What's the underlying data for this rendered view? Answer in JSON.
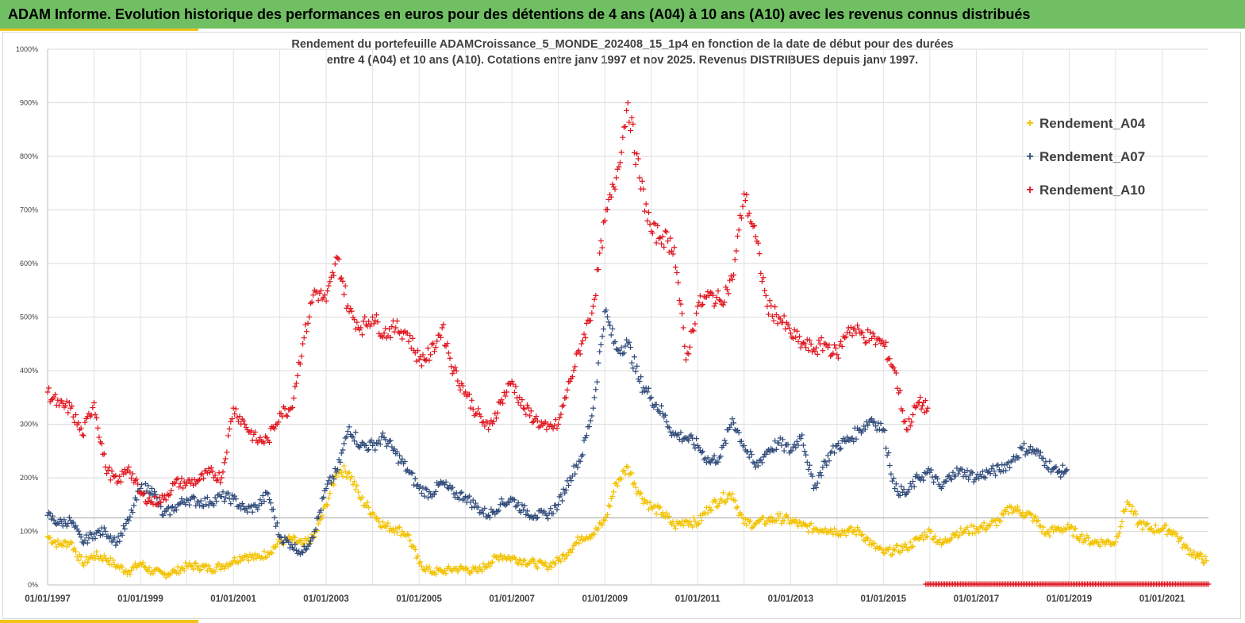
{
  "header": {
    "title": "ADAM Informe. Evolution historique des performances en euros pour des détentions de 4 ans (A04) à 10 ans (A10) avec les revenus connus distribués"
  },
  "chart_data": {
    "type": "scatter",
    "title_line1": "Rendement du portefeuille ADAMCroissance_5_MONDE_202408_15_1p4  en fonction de la date de début pour des durées",
    "title_line2": "entre 4 (A04) et 10 ans (A10). Cotations entre janv 1997 et nov 2025. Revenus DISTRIBUES depuis janv 1997.",
    "xlabel": "",
    "ylabel": "",
    "x_range": [
      "1997-01-01",
      "2022-01-01"
    ],
    "ylim": [
      0,
      10
    ],
    "x_ticks": [
      "01/01/1997",
      "01/01/1999",
      "01/01/2001",
      "01/01/2003",
      "01/01/2005",
      "01/01/2007",
      "01/01/2009",
      "01/01/2011",
      "01/01/2013",
      "01/01/2015",
      "01/01/2017",
      "01/01/2019",
      "01/01/2021"
    ],
    "y_ticks": [
      "0%",
      "100%",
      "200%",
      "300%",
      "400%",
      "500%",
      "600%",
      "700%",
      "800%",
      "900%",
      "1000%"
    ],
    "y_tick_values": [
      0,
      1,
      2,
      3,
      4,
      5,
      6,
      7,
      8,
      9,
      10
    ],
    "reference_line": 1.25,
    "grid": true,
    "legend_position": "top-right",
    "marker": "+",
    "series": [
      {
        "name": "Rendement_A04",
        "color": "#f2c200",
        "x": [
          "1997-01-01",
          "1997-04-01",
          "1997-07-01",
          "1997-10-01",
          "1998-01-01",
          "1998-04-01",
          "1998-07-01",
          "1998-10-01",
          "1999-01-01",
          "1999-04-01",
          "1999-07-01",
          "1999-10-01",
          "2000-01-01",
          "2000-04-01",
          "2000-07-01",
          "2000-10-01",
          "2001-01-01",
          "2001-04-01",
          "2001-07-01",
          "2001-10-01",
          "2002-01-01",
          "2002-04-01",
          "2002-07-01",
          "2002-10-01",
          "2003-01-01",
          "2003-04-01",
          "2003-07-01",
          "2003-10-01",
          "2004-01-01",
          "2004-04-01",
          "2004-07-01",
          "2004-10-01",
          "2005-01-01",
          "2005-04-01",
          "2005-07-01",
          "2005-10-01",
          "2006-01-01",
          "2006-04-01",
          "2006-07-01",
          "2006-10-01",
          "2007-01-01",
          "2007-04-01",
          "2007-07-01",
          "2007-10-01",
          "2008-01-01",
          "2008-04-01",
          "2008-07-01",
          "2008-10-01",
          "2009-01-01",
          "2009-04-01",
          "2009-07-01",
          "2009-10-01",
          "2010-01-01",
          "2010-04-01",
          "2010-07-01",
          "2010-10-01",
          "2011-01-01",
          "2011-04-01",
          "2011-07-01",
          "2011-10-01",
          "2012-01-01",
          "2012-04-01",
          "2012-07-01",
          "2012-10-01",
          "2013-01-01",
          "2013-04-01",
          "2013-07-01",
          "2013-10-01",
          "2014-01-01",
          "2014-04-01",
          "2014-07-01",
          "2014-10-01",
          "2015-01-01",
          "2015-04-01",
          "2015-07-01",
          "2015-10-01",
          "2016-01-01",
          "2016-04-01",
          "2016-07-01",
          "2016-10-01",
          "2017-01-01",
          "2017-04-01",
          "2017-07-01",
          "2017-10-01",
          "2018-01-01",
          "2018-04-01",
          "2018-07-01",
          "2018-10-01",
          "2019-01-01",
          "2019-04-01",
          "2019-07-01",
          "2019-10-01",
          "2020-01-01",
          "2020-04-01",
          "2020-07-01",
          "2020-10-01",
          "2021-01-01",
          "2021-04-01",
          "2021-07-01",
          "2021-10-01",
          "2021-12-15"
        ],
        "y": [
          0.9,
          0.75,
          0.8,
          0.4,
          0.55,
          0.5,
          0.35,
          0.25,
          0.4,
          0.25,
          0.2,
          0.25,
          0.35,
          0.35,
          0.3,
          0.35,
          0.45,
          0.55,
          0.5,
          0.6,
          0.8,
          0.85,
          0.75,
          0.9,
          1.5,
          2.15,
          2.1,
          1.6,
          1.35,
          1.1,
          1.05,
          0.95,
          0.4,
          0.25,
          0.25,
          0.3,
          0.3,
          0.25,
          0.4,
          0.55,
          0.5,
          0.45,
          0.4,
          0.35,
          0.45,
          0.65,
          0.9,
          0.95,
          1.2,
          1.9,
          2.2,
          1.7,
          1.45,
          1.35,
          1.1,
          1.2,
          1.15,
          1.45,
          1.6,
          1.7,
          1.15,
          1.15,
          1.2,
          1.25,
          1.2,
          1.1,
          1.05,
          1.05,
          1.0,
          1.0,
          1.0,
          0.75,
          0.6,
          0.65,
          0.7,
          0.85,
          1.0,
          0.75,
          0.95,
          1.0,
          1.05,
          1.1,
          1.2,
          1.45,
          1.35,
          1.25,
          0.95,
          1.05,
          1.05,
          0.9,
          0.8,
          0.8,
          0.8,
          1.55,
          1.15,
          1.05,
          1.05,
          1.0,
          0.7,
          0.55,
          0.45
        ]
      },
      {
        "name": "Rendement_A07",
        "color": "#2f4a7a",
        "x": [
          "1997-01-01",
          "1997-04-01",
          "1997-07-01",
          "1997-10-01",
          "1998-01-01",
          "1998-04-01",
          "1998-07-01",
          "1998-10-01",
          "1999-01-01",
          "1999-04-01",
          "1999-07-01",
          "1999-10-01",
          "2000-01-01",
          "2000-04-01",
          "2000-07-01",
          "2000-10-01",
          "2001-01-01",
          "2001-04-01",
          "2001-07-01",
          "2001-10-01",
          "2002-01-01",
          "2002-04-01",
          "2002-07-01",
          "2002-10-01",
          "2003-01-01",
          "2003-04-01",
          "2003-07-01",
          "2003-10-01",
          "2004-01-01",
          "2004-04-01",
          "2004-07-01",
          "2004-10-01",
          "2005-01-01",
          "2005-04-01",
          "2005-07-01",
          "2005-10-01",
          "2006-01-01",
          "2006-04-01",
          "2006-07-01",
          "2006-10-01",
          "2007-01-01",
          "2007-04-01",
          "2007-07-01",
          "2007-10-01",
          "2008-01-01",
          "2008-04-01",
          "2008-07-01",
          "2008-10-01",
          "2009-01-01",
          "2009-04-01",
          "2009-07-01",
          "2009-10-01",
          "2010-01-01",
          "2010-04-01",
          "2010-07-01",
          "2010-10-01",
          "2011-01-01",
          "2011-04-01",
          "2011-07-01",
          "2011-10-01",
          "2012-01-01",
          "2012-04-01",
          "2012-07-01",
          "2012-10-01",
          "2013-01-01",
          "2013-04-01",
          "2013-07-01",
          "2013-10-01",
          "2014-01-01",
          "2014-04-01",
          "2014-07-01",
          "2014-10-01",
          "2015-01-01",
          "2015-04-01",
          "2015-07-01",
          "2015-10-01",
          "2016-01-01",
          "2016-04-01",
          "2016-07-01",
          "2016-10-01",
          "2017-01-01",
          "2017-04-01",
          "2017-07-01",
          "2017-10-01",
          "2018-01-01",
          "2018-04-01",
          "2018-07-01",
          "2018-10-01",
          "2018-12-15"
        ],
        "y": [
          1.3,
          1.15,
          1.2,
          0.8,
          0.95,
          1.0,
          0.8,
          1.2,
          1.8,
          1.8,
          1.3,
          1.45,
          1.6,
          1.55,
          1.55,
          1.65,
          1.6,
          1.4,
          1.45,
          1.7,
          0.9,
          0.75,
          0.6,
          1.0,
          1.8,
          2.15,
          2.95,
          2.6,
          2.6,
          2.75,
          2.45,
          2.15,
          1.8,
          1.7,
          1.9,
          1.7,
          1.65,
          1.45,
          1.3,
          1.5,
          1.6,
          1.4,
          1.3,
          1.3,
          1.5,
          2.0,
          2.4,
          3.3,
          5.1,
          4.4,
          4.5,
          3.8,
          3.5,
          3.2,
          2.8,
          2.75,
          2.6,
          2.3,
          2.4,
          3.1,
          2.6,
          2.2,
          2.5,
          2.65,
          2.5,
          2.8,
          1.8,
          2.3,
          2.6,
          2.7,
          2.9,
          3.1,
          2.9,
          1.8,
          1.7,
          2.0,
          2.1,
          1.8,
          2.1,
          2.1,
          2.0,
          2.1,
          2.15,
          2.3,
          2.55,
          2.5,
          2.3,
          2.1,
          2.15
        ]
      },
      {
        "name": "Rendement_A10",
        "color": "#e0141e",
        "x": [
          "1997-01-01",
          "1997-04-01",
          "1997-07-01",
          "1997-10-01",
          "1998-01-01",
          "1998-04-01",
          "1998-07-01",
          "1998-10-01",
          "1999-01-01",
          "1999-04-01",
          "1999-07-01",
          "1999-10-01",
          "2000-01-01",
          "2000-04-01",
          "2000-07-01",
          "2000-10-01",
          "2001-01-01",
          "2001-04-01",
          "2001-07-01",
          "2001-10-01",
          "2002-01-01",
          "2002-04-01",
          "2002-07-01",
          "2002-10-01",
          "2003-01-01",
          "2003-04-01",
          "2003-07-01",
          "2003-10-01",
          "2004-01-01",
          "2004-04-01",
          "2004-07-01",
          "2004-10-01",
          "2005-01-01",
          "2005-04-01",
          "2005-07-01",
          "2005-10-01",
          "2006-01-01",
          "2006-04-01",
          "2006-07-01",
          "2006-10-01",
          "2007-01-01",
          "2007-04-01",
          "2007-07-01",
          "2007-10-01",
          "2008-01-01",
          "2008-04-01",
          "2008-07-01",
          "2008-10-01",
          "2009-01-01",
          "2009-04-01",
          "2009-07-01",
          "2009-10-01",
          "2010-01-01",
          "2010-04-01",
          "2010-07-01",
          "2010-10-01",
          "2011-01-01",
          "2011-04-01",
          "2011-07-01",
          "2011-10-01",
          "2012-01-01",
          "2012-04-01",
          "2012-07-01",
          "2012-10-01",
          "2013-01-01",
          "2013-04-01",
          "2013-07-01",
          "2013-10-01",
          "2014-01-01",
          "2014-04-01",
          "2014-07-01",
          "2014-10-01",
          "2015-01-01",
          "2015-04-01",
          "2015-07-01",
          "2015-10-01",
          "2015-12-15"
        ],
        "y": [
          3.6,
          3.35,
          3.3,
          2.8,
          3.4,
          2.2,
          1.9,
          2.2,
          1.7,
          1.55,
          1.6,
          1.9,
          1.9,
          1.95,
          2.1,
          2.0,
          3.3,
          3.0,
          2.7,
          2.7,
          3.2,
          3.3,
          4.5,
          5.5,
          5.3,
          6.1,
          5.1,
          4.8,
          5.0,
          4.7,
          4.8,
          4.7,
          4.2,
          4.3,
          4.8,
          4.0,
          3.6,
          3.2,
          2.9,
          3.4,
          3.8,
          3.3,
          3.1,
          2.9,
          3.0,
          3.8,
          4.5,
          5.2,
          6.8,
          7.6,
          9.0,
          7.6,
          6.6,
          6.5,
          6.3,
          4.2,
          5.2,
          5.4,
          5.3,
          5.7,
          7.3,
          6.5,
          5.2,
          5.0,
          4.7,
          4.5,
          4.4,
          4.5,
          4.3,
          4.8,
          4.7,
          4.6,
          4.5,
          4.0,
          2.9,
          3.4,
          3.3
        ]
      },
      {
        "name": "",
        "color": "#e0141e",
        "x": [
          "2015-12-01",
          "2021-12-31"
        ],
        "y": [
          0,
          0
        ],
        "dense_band": true
      }
    ]
  }
}
